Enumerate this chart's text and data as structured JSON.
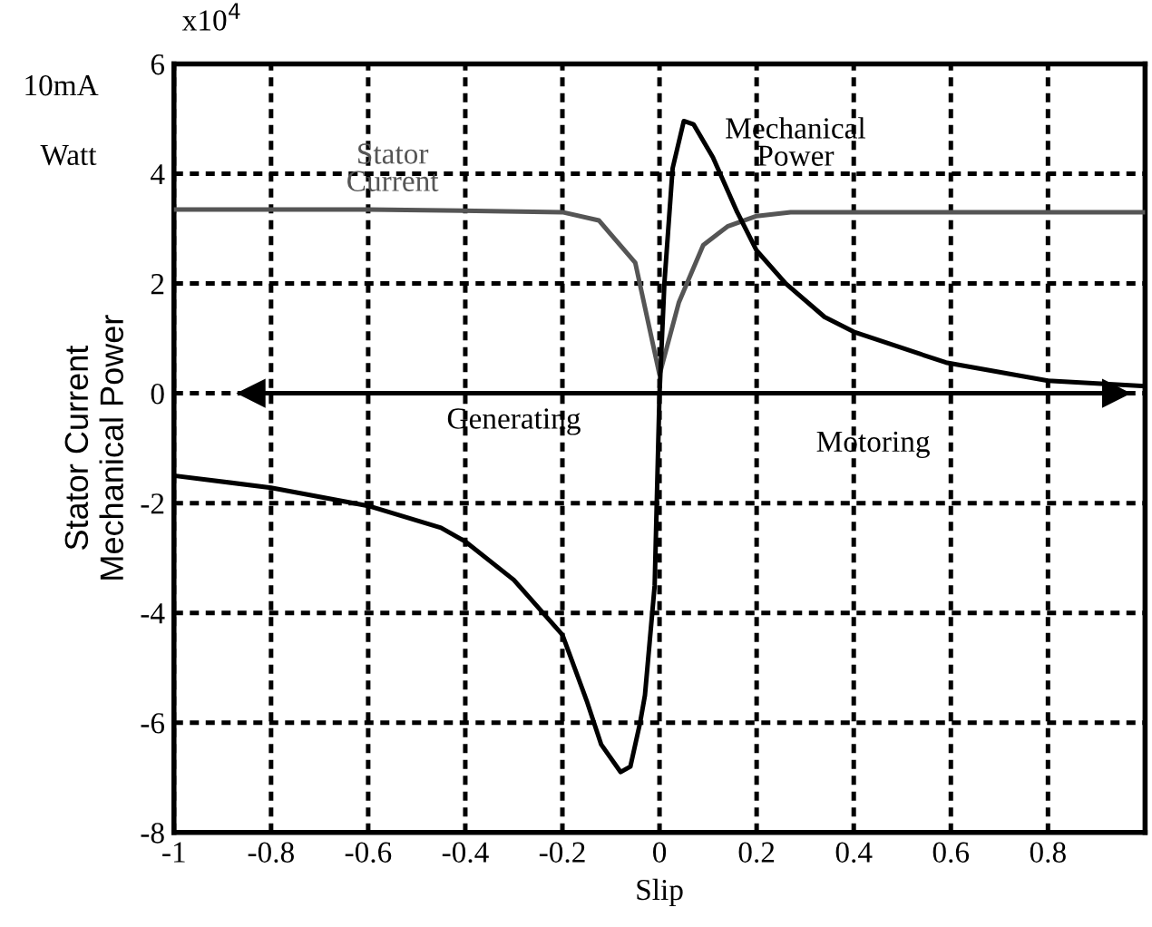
{
  "chart_data": {
    "type": "line",
    "xlabel": "Slip",
    "ylabel": "Stator Current\nMechanical Power",
    "xlim": [
      -1,
      1
    ],
    "ylim": [
      -8,
      6
    ],
    "xticks": [
      -1,
      -0.8,
      -0.6,
      -0.4,
      -0.2,
      0,
      0.2,
      0.4,
      0.6,
      0.8
    ],
    "yticks": [
      -8,
      -6,
      -4,
      -2,
      0,
      2,
      4,
      6
    ],
    "grid": true,
    "legend": false,
    "marker": "none",
    "line_style": "solid",
    "series": [
      {
        "color": "#555555",
        "x": [
          -1,
          -0.6,
          -0.2,
          -0.125,
          -0.05,
          0,
          0.04,
          0.09,
          0.14,
          0.2,
          0.27,
          0.6,
          1
        ],
        "values": [
          3.35,
          3.35,
          3.3,
          3.15,
          2.38,
          0.34,
          1.66,
          2.7,
          3.04,
          3.23,
          3.3,
          3.3,
          3.3
        ]
      },
      {
        "color": "#000000",
        "x": [
          -1,
          -0.8,
          -0.6,
          -0.45,
          -0.4,
          -0.3,
          -0.2,
          -0.15,
          -0.12,
          -0.08,
          -0.06,
          -0.04,
          -0.03,
          -0.01,
          0,
          0.01,
          0.027,
          0.05,
          0.07,
          0.11,
          0.16,
          0.2,
          0.26,
          0.34,
          0.4,
          0.59,
          0.8,
          1
        ],
        "values": [
          -1.5,
          -1.72,
          -2.05,
          -2.45,
          -2.7,
          -3.4,
          -4.4,
          -5.6,
          -6.4,
          -6.9,
          -6.8,
          -6.0,
          -5.5,
          -3.5,
          0,
          2.0,
          4.1,
          4.96,
          4.9,
          4.3,
          3.3,
          2.6,
          2.0,
          1.39,
          1.12,
          0.56,
          0.23,
          0.13
        ]
      }
    ],
    "annotations": [
      "x10$^{4}$",
      "10mA",
      "Watt",
      "Stator\nCurrent",
      "Mechanical\nPower",
      "Generating",
      "Motoring"
    ],
    "ref_lines": [
      {
        "axis": "y",
        "value": 0,
        "color": "#000000"
      }
    ]
  }
}
